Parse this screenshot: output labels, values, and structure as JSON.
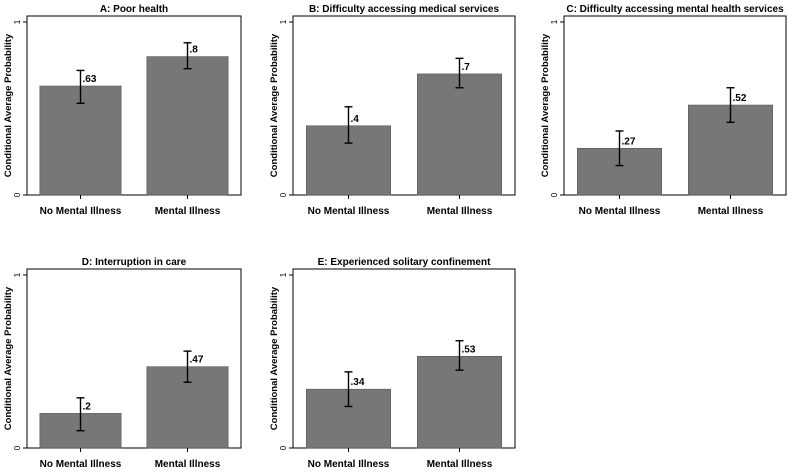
{
  "chart_data": [
    {
      "type": "bar",
      "title": "A: Poor health",
      "categories": [
        "No Mental Illness",
        "Mental Illness"
      ],
      "values": [
        0.63,
        0.8
      ],
      "value_labels": [
        ".63",
        ".8"
      ],
      "ci_lower": [
        0.53,
        0.73
      ],
      "ci_upper": [
        0.72,
        0.88
      ],
      "ylabel": "Conditional Average Probability",
      "yticks": [
        "0",
        "1"
      ],
      "ylim": [
        0,
        1
      ],
      "bar_color": "#777777"
    },
    {
      "type": "bar",
      "title": "B: Difficulty accessing medical services",
      "categories": [
        "No Mental Illness",
        "Mental Illness"
      ],
      "values": [
        0.4,
        0.7
      ],
      "value_labels": [
        ".4",
        ".7"
      ],
      "ci_lower": [
        0.3,
        0.62
      ],
      "ci_upper": [
        0.51,
        0.79
      ],
      "ylabel": "Conditional Average Probability",
      "yticks": [
        "0",
        "1"
      ],
      "ylim": [
        0,
        1
      ],
      "bar_color": "#777777"
    },
    {
      "type": "bar",
      "title": "C: Difficulty accessing mental health services",
      "categories": [
        "No Mental Illness",
        "Mental Illness"
      ],
      "values": [
        0.27,
        0.52
      ],
      "value_labels": [
        ".27",
        ".52"
      ],
      "ci_lower": [
        0.17,
        0.42
      ],
      "ci_upper": [
        0.37,
        0.62
      ],
      "ylabel": "Conditional Average Probability",
      "yticks": [
        "0",
        "1"
      ],
      "ylim": [
        0,
        1
      ],
      "bar_color": "#777777"
    },
    {
      "type": "bar",
      "title": "D: Interruption in care",
      "categories": [
        "No Mental Illness",
        "Mental Illness"
      ],
      "values": [
        0.2,
        0.47
      ],
      "value_labels": [
        ".2",
        ".47"
      ],
      "ci_lower": [
        0.1,
        0.38
      ],
      "ci_upper": [
        0.29,
        0.56
      ],
      "ylabel": "Conditional Average Probability",
      "yticks": [
        "0",
        "1"
      ],
      "ylim": [
        0,
        1
      ],
      "bar_color": "#777777"
    },
    {
      "type": "bar",
      "title": "E: Experienced solitary confinement",
      "categories": [
        "No Mental Illness",
        "Mental Illness"
      ],
      "values": [
        0.34,
        0.53
      ],
      "value_labels": [
        ".34",
        ".53"
      ],
      "ci_lower": [
        0.24,
        0.45
      ],
      "ci_upper": [
        0.44,
        0.62
      ],
      "ylabel": "Conditional Average Probability",
      "yticks": [
        "0",
        "1"
      ],
      "ylim": [
        0,
        1
      ],
      "bar_color": "#777777"
    }
  ]
}
